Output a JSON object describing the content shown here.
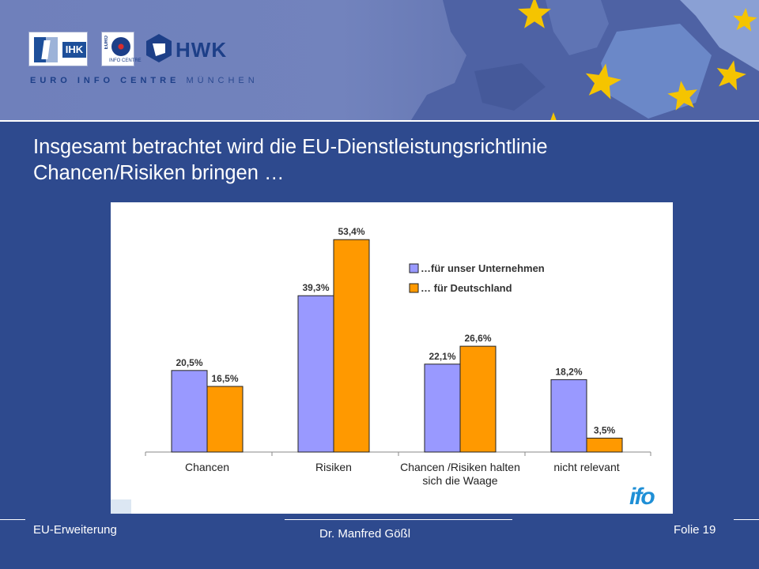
{
  "header": {
    "logos": [
      "IHK",
      "HWK"
    ],
    "euro_logo_side": "EURO",
    "euro_logo_bottom": "INFO CENTRE",
    "brand_bold": "EURO INFO CENTRE",
    "brand_light": "MÜNCHEN"
  },
  "slide": {
    "title_line1": "Insgesamt betrachtet wird die EU-Dienstleistungsrichtlinie",
    "title_line2": "Chancen/Risiken bringen …"
  },
  "chart_data": {
    "type": "bar",
    "categories": [
      [
        "Chancen"
      ],
      [
        "Risiken"
      ],
      [
        "Chancen /Risiken halten",
        "sich die Waage"
      ],
      [
        "nicht relevant"
      ]
    ],
    "series": [
      {
        "name": "…für unser Unternehmen",
        "values": [
          20.5,
          39.3,
          22.1,
          18.2
        ],
        "labels": [
          "20,5%",
          "39,3%",
          "22,1%",
          "18,2%"
        ],
        "color": "#9999ff"
      },
      {
        "name": "… für Deutschland",
        "values": [
          16.5,
          53.4,
          26.6,
          3.5
        ],
        "labels": [
          "16,5%",
          "53,4%",
          "26,6%",
          "3,5%"
        ],
        "color": "#ff9900"
      }
    ],
    "ylim": [
      0,
      60
    ],
    "legend_position": "top-right",
    "source_logo": "ifo",
    "grid": false
  },
  "footer": {
    "left": "EU-Erweiterung",
    "center": "Dr. Manfred Gößl",
    "right": "Folie 19"
  },
  "colors": {
    "slide_background": "#2e4a8e",
    "header_background": "#7283bd",
    "star": "#f5c400",
    "bar_company": "#9999ff",
    "bar_germany": "#ff9900",
    "logo_blue": "#1d3f88",
    "ifo_blue": "#1f8fd6"
  }
}
